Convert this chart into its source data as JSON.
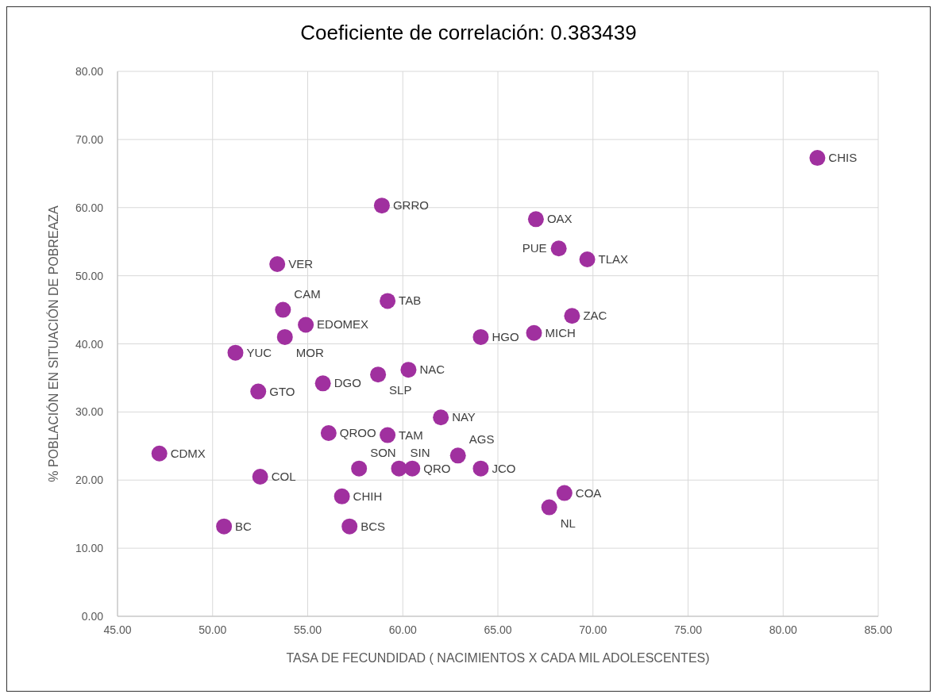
{
  "chart_data": {
    "type": "scatter",
    "title": "Coeficiente de correlación: 0.383439",
    "xlabel": "TASA  DE FECUNDIDAD ( NACIMIENTOS  X CADA MIL ADOLESCENTES)",
    "ylabel": "% POBLACIÓN EN SITUACIÓN DE POBREAZA",
    "xlim": [
      45,
      85
    ],
    "ylim": [
      0,
      80
    ],
    "xticks": [
      {
        "value": 45,
        "label": "45.00"
      },
      {
        "value": 50,
        "label": "50.00"
      },
      {
        "value": 55,
        "label": "55.00"
      },
      {
        "value": 60,
        "label": "60.00"
      },
      {
        "value": 65,
        "label": "65.00"
      },
      {
        "value": 70,
        "label": "70.00"
      },
      {
        "value": 75,
        "label": "75.00"
      },
      {
        "value": 80,
        "label": "80.00"
      },
      {
        "value": 85,
        "label": "85.00"
      }
    ],
    "yticks": [
      {
        "value": 0,
        "label": "0.00"
      },
      {
        "value": 10,
        "label": "10.00"
      },
      {
        "value": 20,
        "label": "20.00"
      },
      {
        "value": 30,
        "label": "30.00"
      },
      {
        "value": 40,
        "label": "40.00"
      },
      {
        "value": 50,
        "label": "50.00"
      },
      {
        "value": 60,
        "label": "60.00"
      },
      {
        "value": 70,
        "label": "70.00"
      },
      {
        "value": 80,
        "label": "80.00"
      }
    ],
    "grid": true,
    "marker": "circle",
    "series": [
      {
        "color": "#a0309f",
        "x": [
          81.8,
          58.9,
          67.0,
          68.2,
          69.7,
          53.4,
          59.2,
          53.7,
          68.9,
          54.9,
          53.8,
          64.1,
          66.9,
          51.2,
          60.3,
          58.7,
          55.8,
          52.4,
          62.0,
          56.1,
          59.2,
          47.2,
          62.9,
          57.7,
          59.8,
          60.5,
          64.1,
          52.5,
          68.5,
          56.8,
          67.7,
          50.6,
          57.2
        ],
        "values": [
          67.3,
          60.3,
          58.3,
          54.0,
          52.4,
          51.7,
          46.3,
          45.0,
          44.1,
          42.8,
          41.0,
          41.0,
          41.6,
          38.7,
          36.2,
          35.5,
          34.2,
          33.0,
          29.2,
          26.9,
          26.6,
          23.9,
          23.6,
          21.7,
          21.7,
          21.7,
          21.7,
          20.5,
          18.1,
          17.6,
          16.0,
          13.2,
          13.2
        ]
      }
    ],
    "annotations": [
      {
        "text": "CHIS",
        "x": 81.8,
        "y": 67.3
      },
      {
        "text": "GRRO",
        "x": 58.9,
        "y": 60.3
      },
      {
        "text": "OAX",
        "x": 67.0,
        "y": 58.3
      },
      {
        "text": "PUE",
        "x": 68.2,
        "y": 54.0
      },
      {
        "text": "TLAX",
        "x": 69.7,
        "y": 52.4
      },
      {
        "text": "VER",
        "x": 53.4,
        "y": 51.7
      },
      {
        "text": "TAB",
        "x": 59.2,
        "y": 46.3
      },
      {
        "text": "CAM",
        "x": 53.7,
        "y": 45.0
      },
      {
        "text": "ZAC",
        "x": 68.9,
        "y": 44.1
      },
      {
        "text": "EDOMEX",
        "x": 54.9,
        "y": 42.8
      },
      {
        "text": "MOR",
        "x": 53.8,
        "y": 41.0
      },
      {
        "text": "HGO",
        "x": 64.1,
        "y": 41.0
      },
      {
        "text": "MICH",
        "x": 66.9,
        "y": 41.6
      },
      {
        "text": "YUC",
        "x": 51.2,
        "y": 38.7
      },
      {
        "text": "NAC",
        "x": 60.3,
        "y": 36.2
      },
      {
        "text": "SLP",
        "x": 58.7,
        "y": 35.5
      },
      {
        "text": "DGO",
        "x": 55.8,
        "y": 34.2
      },
      {
        "text": "GTO",
        "x": 52.4,
        "y": 33.0
      },
      {
        "text": "NAY",
        "x": 62.0,
        "y": 29.2
      },
      {
        "text": "QROO",
        "x": 56.1,
        "y": 26.9
      },
      {
        "text": "TAM",
        "x": 59.2,
        "y": 26.6
      },
      {
        "text": "CDMX",
        "x": 47.2,
        "y": 23.9
      },
      {
        "text": "AGS",
        "x": 62.9,
        "y": 23.6
      },
      {
        "text": "SON",
        "x": 57.7,
        "y": 21.7
      },
      {
        "text": "SIN",
        "x": 59.8,
        "y": 21.7
      },
      {
        "text": "QRO",
        "x": 60.5,
        "y": 21.7
      },
      {
        "text": "JCO",
        "x": 64.1,
        "y": 21.7
      },
      {
        "text": "COL",
        "x": 52.5,
        "y": 20.5
      },
      {
        "text": "COA",
        "x": 68.5,
        "y": 18.1
      },
      {
        "text": "CHIH",
        "x": 56.8,
        "y": 17.6
      },
      {
        "text": "NL",
        "x": 67.7,
        "y": 16.0
      },
      {
        "text": "BC",
        "x": 50.6,
        "y": 13.2
      },
      {
        "text": "BCS",
        "x": 57.2,
        "y": 13.2
      }
    ]
  }
}
